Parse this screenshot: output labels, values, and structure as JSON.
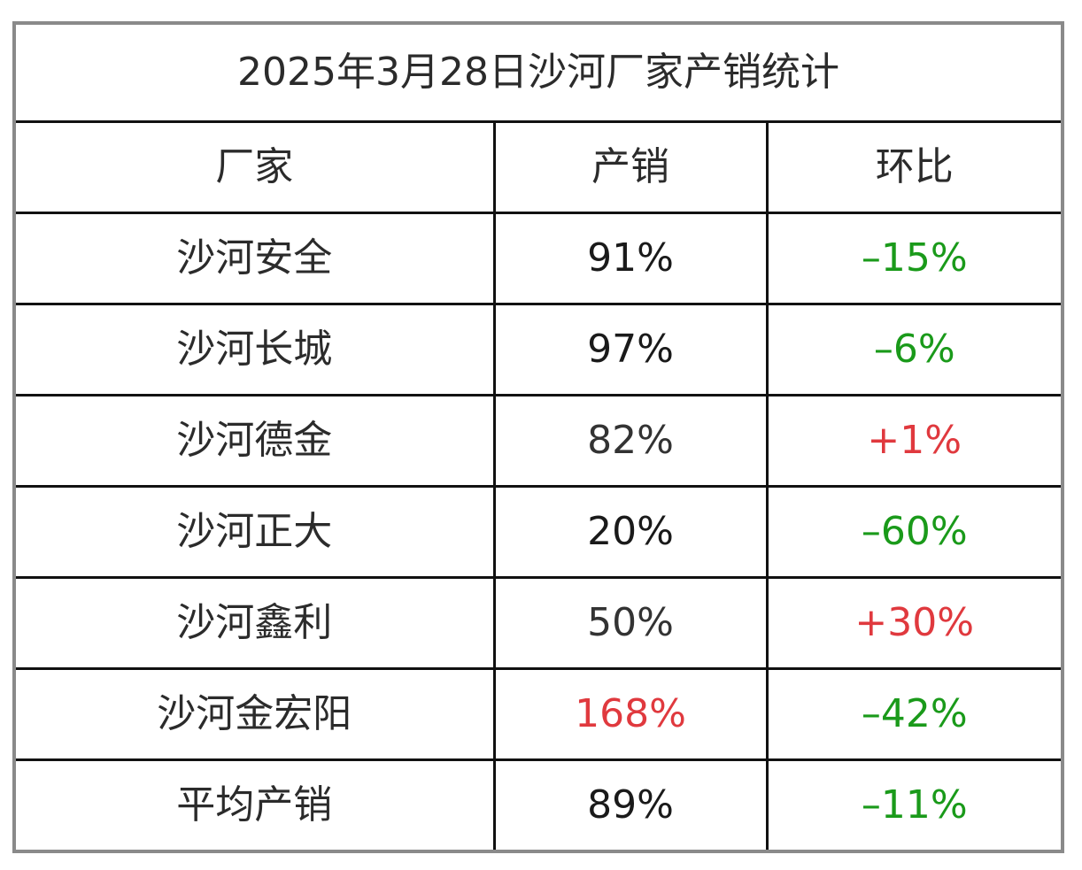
{
  "title": "2025年3月28日沙河厂家产销统计",
  "headers": {
    "factory": "厂家",
    "production_sales": "产销",
    "mom": "环比"
  },
  "rows": [
    {
      "factory": "沙河安全",
      "production_sales": "91%",
      "mom": "–15%",
      "ps_color": "#1a1a1a",
      "mom_color": "#1a9a1a"
    },
    {
      "factory": "沙河长城",
      "production_sales": "97%",
      "mom": "–6%",
      "ps_color": "#1a1a1a",
      "mom_color": "#1a9a1a"
    },
    {
      "factory": "沙河德金",
      "production_sales": "82%",
      "mom": "+1%",
      "ps_color": "#333333",
      "mom_color": "#e0393e"
    },
    {
      "factory": "沙河正大",
      "production_sales": "20%",
      "mom": "–60%",
      "ps_color": "#1a1a1a",
      "mom_color": "#1a9a1a"
    },
    {
      "factory": "沙河鑫利",
      "production_sales": "50%",
      "mom": "+30%",
      "ps_color": "#333333",
      "mom_color": "#e0393e"
    },
    {
      "factory": "沙河金宏阳",
      "production_sales": "168%",
      "mom": "–42%",
      "ps_color": "#e0393e",
      "mom_color": "#1a9a1a"
    },
    {
      "factory": "平均产销",
      "production_sales": "89%",
      "mom": "–11%",
      "ps_color": "#1a1a1a",
      "mom_color": "#1a9a1a"
    }
  ]
}
